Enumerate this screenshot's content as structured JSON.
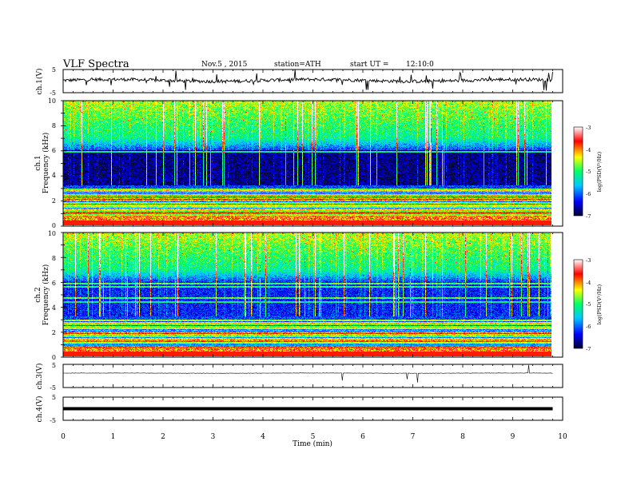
{
  "header": {
    "title": "VLF  Spectra",
    "date": "Nov.5  , 2015",
    "station": "station=ATH",
    "start_label": "start  UT  =",
    "start_time": "12:10:0"
  },
  "chart_data": [
    {
      "type": "line",
      "name": "ch1-waveform",
      "ylabel": "ch.1(V)",
      "ylim": [
        -5,
        5
      ],
      "yticks": [
        "5",
        "-5"
      ],
      "xlim": [
        0,
        10
      ],
      "baseline_v": 0.3
    },
    {
      "type": "heatmap",
      "name": "ch1-spectrogram",
      "ylabel_channel": "ch.1",
      "ylabel": "Frequency  (kHz)",
      "ylim": [
        0,
        10
      ],
      "yticks": [
        "0",
        "2",
        "4",
        "6",
        "8",
        "10"
      ],
      "xlim": [
        0,
        9.8
      ],
      "colorbar": {
        "label": "log(PSD(V²/Hz)",
        "range": [
          -7,
          -3
        ],
        "ticks": [
          "-3",
          "-4",
          "-5",
          "-6",
          "-7"
        ],
        "colors": [
          "#000033",
          "#0000ff",
          "#00c8ff",
          "#00ff66",
          "#ffff00",
          "#ff0000",
          "#ffffff"
        ]
      }
    },
    {
      "type": "heatmap",
      "name": "ch2-spectrogram",
      "ylabel_channel": "ch.2",
      "ylabel": "Frequency  (kHz)",
      "ylim": [
        0,
        10
      ],
      "yticks": [
        "0",
        "2",
        "4",
        "6",
        "8",
        "10"
      ],
      "xlim": [
        0,
        9.8
      ],
      "colorbar": {
        "label": "log(PSD(V²/Hz)",
        "range": [
          -7,
          -3
        ],
        "ticks": [
          "-3",
          "-4",
          "-5",
          "-6",
          "-7"
        ],
        "colors": [
          "#000033",
          "#0000ff",
          "#00c8ff",
          "#00ff66",
          "#ffff00",
          "#ff0000",
          "#ffffff"
        ]
      }
    },
    {
      "type": "line",
      "name": "ch3-waveform",
      "ylabel": "ch.3(V)",
      "ylim": [
        -5,
        5
      ],
      "yticks": [
        "5",
        "-5"
      ],
      "xlim": [
        0,
        10
      ],
      "baseline_v": 1.2
    },
    {
      "type": "line",
      "name": "ch4-waveform",
      "ylabel": "ch.4(V)",
      "ylim": [
        -5,
        5
      ],
      "yticks": [
        "5",
        "-5"
      ],
      "xlim": [
        0,
        10
      ],
      "baseline_v": 0.0
    }
  ],
  "xaxis": {
    "label": "Time  (min)",
    "ticks": [
      "0",
      "1",
      "2",
      "3",
      "4",
      "5",
      "6",
      "7",
      "8",
      "9",
      "10"
    ],
    "range": [
      0,
      10
    ]
  }
}
